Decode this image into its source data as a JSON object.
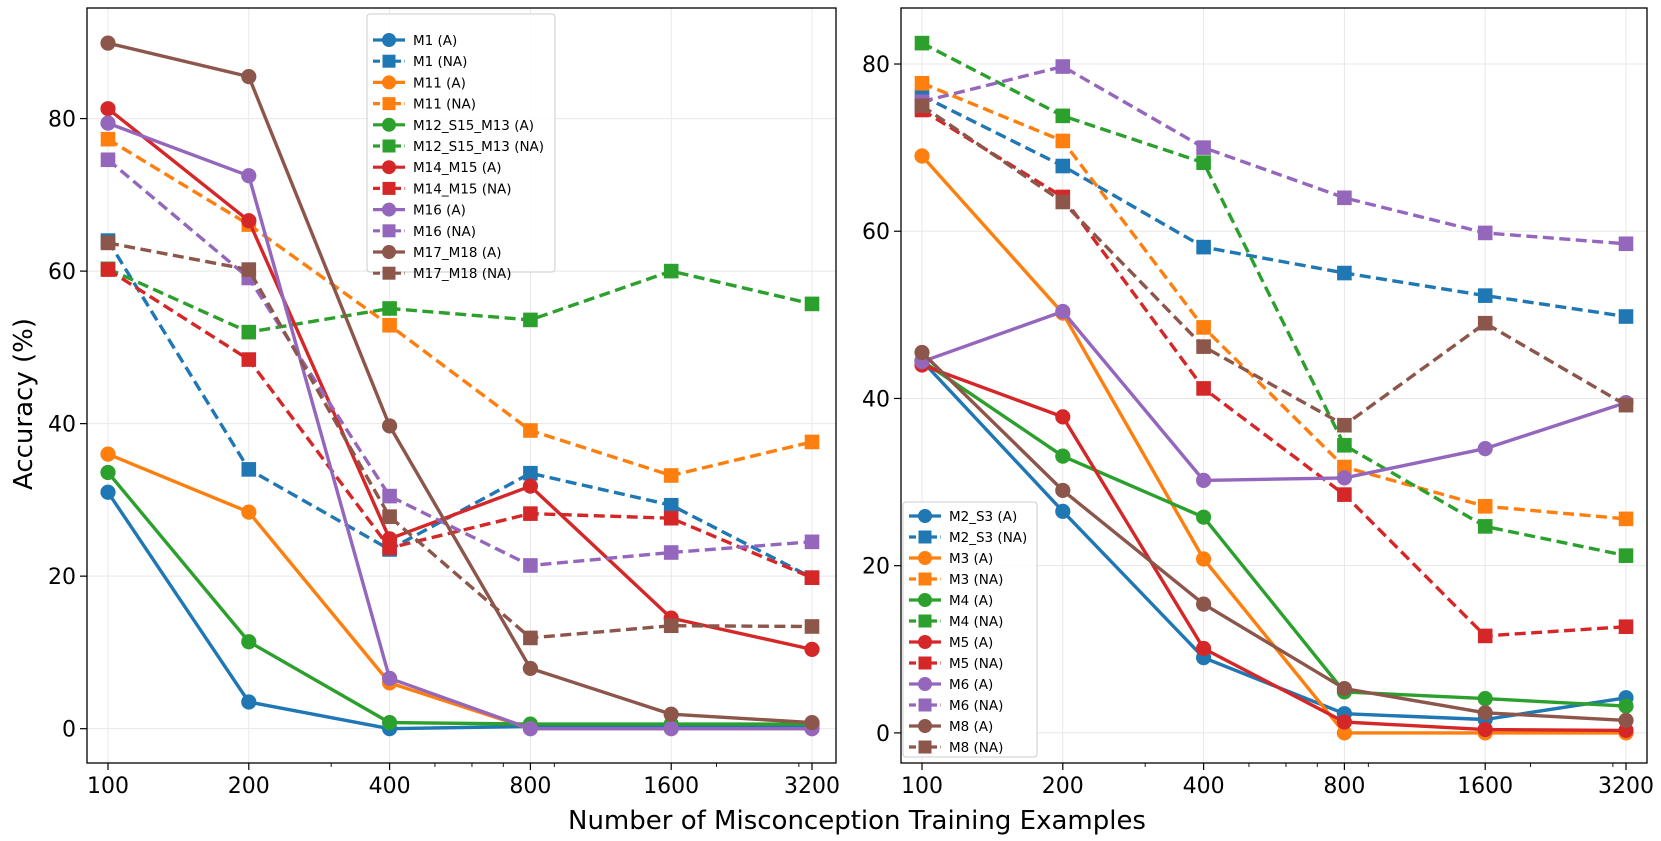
{
  "figure": {
    "xlabel": "Number of Misconception Training Examples",
    "ylabel": "Accuracy (%)"
  },
  "colors": {
    "blue": "#1f77b4",
    "orange": "#ff7f0e",
    "green": "#2ca02c",
    "red": "#d62728",
    "purple": "#9467bd",
    "brown": "#8c564b"
  },
  "chart_data": [
    {
      "type": "line",
      "x": [
        100,
        200,
        400,
        800,
        1600,
        3200
      ],
      "xticks": [
        "100",
        "200",
        "400",
        "800",
        "1600",
        "3200"
      ],
      "xscale": "log",
      "ylim": [
        -4.5,
        94.5
      ],
      "yticks": [
        0,
        20,
        40,
        60,
        80
      ],
      "grid": true,
      "legend_position": "top-center",
      "series": [
        {
          "name": "M1 (A)",
          "color": "blue",
          "marker": "circle",
          "dashed": false,
          "values": [
            31,
            3.5,
            0,
            0.3,
            0.3,
            0.3
          ]
        },
        {
          "name": "M1 (NA)",
          "color": "blue",
          "marker": "square",
          "dashed": true,
          "values": [
            64,
            34,
            23.5,
            33.5,
            29.3,
            19.8
          ]
        },
        {
          "name": "M11 (A)",
          "color": "orange",
          "marker": "circle",
          "dashed": false,
          "values": [
            36,
            28.4,
            6,
            0,
            0,
            0
          ]
        },
        {
          "name": "M11 (NA)",
          "color": "orange",
          "marker": "square",
          "dashed": true,
          "values": [
            77.3,
            66.1,
            52.9,
            39.1,
            33.2,
            37.6
          ]
        },
        {
          "name": "M12_S15_M13 (A)",
          "color": "green",
          "marker": "circle",
          "dashed": false,
          "values": [
            33.6,
            11.4,
            0.8,
            0.6,
            0.6,
            0.6
          ]
        },
        {
          "name": "M12_S15_M13 (NA)",
          "color": "green",
          "marker": "square",
          "dashed": true,
          "values": [
            60.3,
            52,
            55.1,
            53.6,
            60,
            55.7
          ]
        },
        {
          "name": "M14_M15 (A)",
          "color": "red",
          "marker": "circle",
          "dashed": false,
          "values": [
            81.3,
            66.6,
            24.9,
            31.8,
            14.5,
            10.4
          ]
        },
        {
          "name": "M14_M15 (NA)",
          "color": "red",
          "marker": "square",
          "dashed": true,
          "values": [
            60.2,
            48.4,
            23.7,
            28.2,
            27.6,
            19.8
          ]
        },
        {
          "name": "M16 (A)",
          "color": "purple",
          "marker": "circle",
          "dashed": false,
          "values": [
            79.4,
            72.5,
            6.6,
            0,
            0,
            0
          ]
        },
        {
          "name": "M16 (NA)",
          "color": "purple",
          "marker": "square",
          "dashed": true,
          "values": [
            74.6,
            59.1,
            30.5,
            21.4,
            23.1,
            24.5
          ]
        },
        {
          "name": "M17_M18 (A)",
          "color": "brown",
          "marker": "circle",
          "dashed": false,
          "values": [
            89.9,
            85.5,
            39.7,
            7.9,
            1.9,
            0.8
          ]
        },
        {
          "name": "M17_M18 (NA)",
          "color": "brown",
          "marker": "square",
          "dashed": true,
          "values": [
            63.7,
            60.2,
            27.8,
            11.9,
            13.5,
            13.4
          ]
        }
      ]
    },
    {
      "type": "line",
      "x": [
        100,
        200,
        400,
        800,
        1600,
        3200
      ],
      "xticks": [
        "100",
        "200",
        "400",
        "800",
        "1600",
        "3200"
      ],
      "xscale": "log",
      "ylim": [
        -3.6,
        86.7
      ],
      "yticks": [
        0,
        20,
        40,
        60,
        80
      ],
      "grid": true,
      "legend_position": "lower-left",
      "series": [
        {
          "name": "M2_S3 (A)",
          "color": "blue",
          "marker": "circle",
          "dashed": false,
          "values": [
            44.5,
            26.5,
            9,
            2.3,
            1.6,
            4.2
          ]
        },
        {
          "name": "M2_S3 (NA)",
          "color": "blue",
          "marker": "square",
          "dashed": true,
          "values": [
            76.2,
            67.8,
            58.1,
            55,
            52.3,
            49.8
          ]
        },
        {
          "name": "M3 (A)",
          "color": "orange",
          "marker": "circle",
          "dashed": false,
          "values": [
            69,
            50.2,
            20.8,
            0,
            0,
            0
          ]
        },
        {
          "name": "M3 (NA)",
          "color": "orange",
          "marker": "square",
          "dashed": true,
          "values": [
            77.7,
            70.8,
            48.5,
            31.8,
            27.1,
            25.6
          ]
        },
        {
          "name": "M4 (A)",
          "color": "green",
          "marker": "circle",
          "dashed": false,
          "values": [
            44.5,
            33.1,
            25.8,
            4.9,
            4.1,
            3.2
          ]
        },
        {
          "name": "M4 (NA)",
          "color": "green",
          "marker": "square",
          "dashed": true,
          "values": [
            82.5,
            73.8,
            68.2,
            34.4,
            24.7,
            21.2
          ]
        },
        {
          "name": "M5 (A)",
          "color": "red",
          "marker": "circle",
          "dashed": false,
          "values": [
            44,
            37.8,
            10.1,
            1.3,
            0.4,
            0.3
          ]
        },
        {
          "name": "M5 (NA)",
          "color": "red",
          "marker": "square",
          "dashed": true,
          "values": [
            74.5,
            64.1,
            41.2,
            28.5,
            11.6,
            12.7
          ]
        },
        {
          "name": "M6 (A)",
          "color": "purple",
          "marker": "circle",
          "dashed": false,
          "values": [
            44.4,
            50.4,
            30.2,
            30.5,
            34,
            39.5
          ]
        },
        {
          "name": "M6 (NA)",
          "color": "purple",
          "marker": "square",
          "dashed": true,
          "values": [
            75.5,
            79.7,
            70,
            64,
            59.8,
            58.5
          ]
        },
        {
          "name": "M8 (A)",
          "color": "brown",
          "marker": "circle",
          "dashed": false,
          "values": [
            45.5,
            29,
            15.4,
            5.3,
            2.4,
            1.5
          ]
        },
        {
          "name": "M8 (NA)",
          "color": "brown",
          "marker": "square",
          "dashed": true,
          "values": [
            75,
            63.5,
            46.2,
            36.8,
            49,
            39.2
          ]
        }
      ]
    }
  ]
}
